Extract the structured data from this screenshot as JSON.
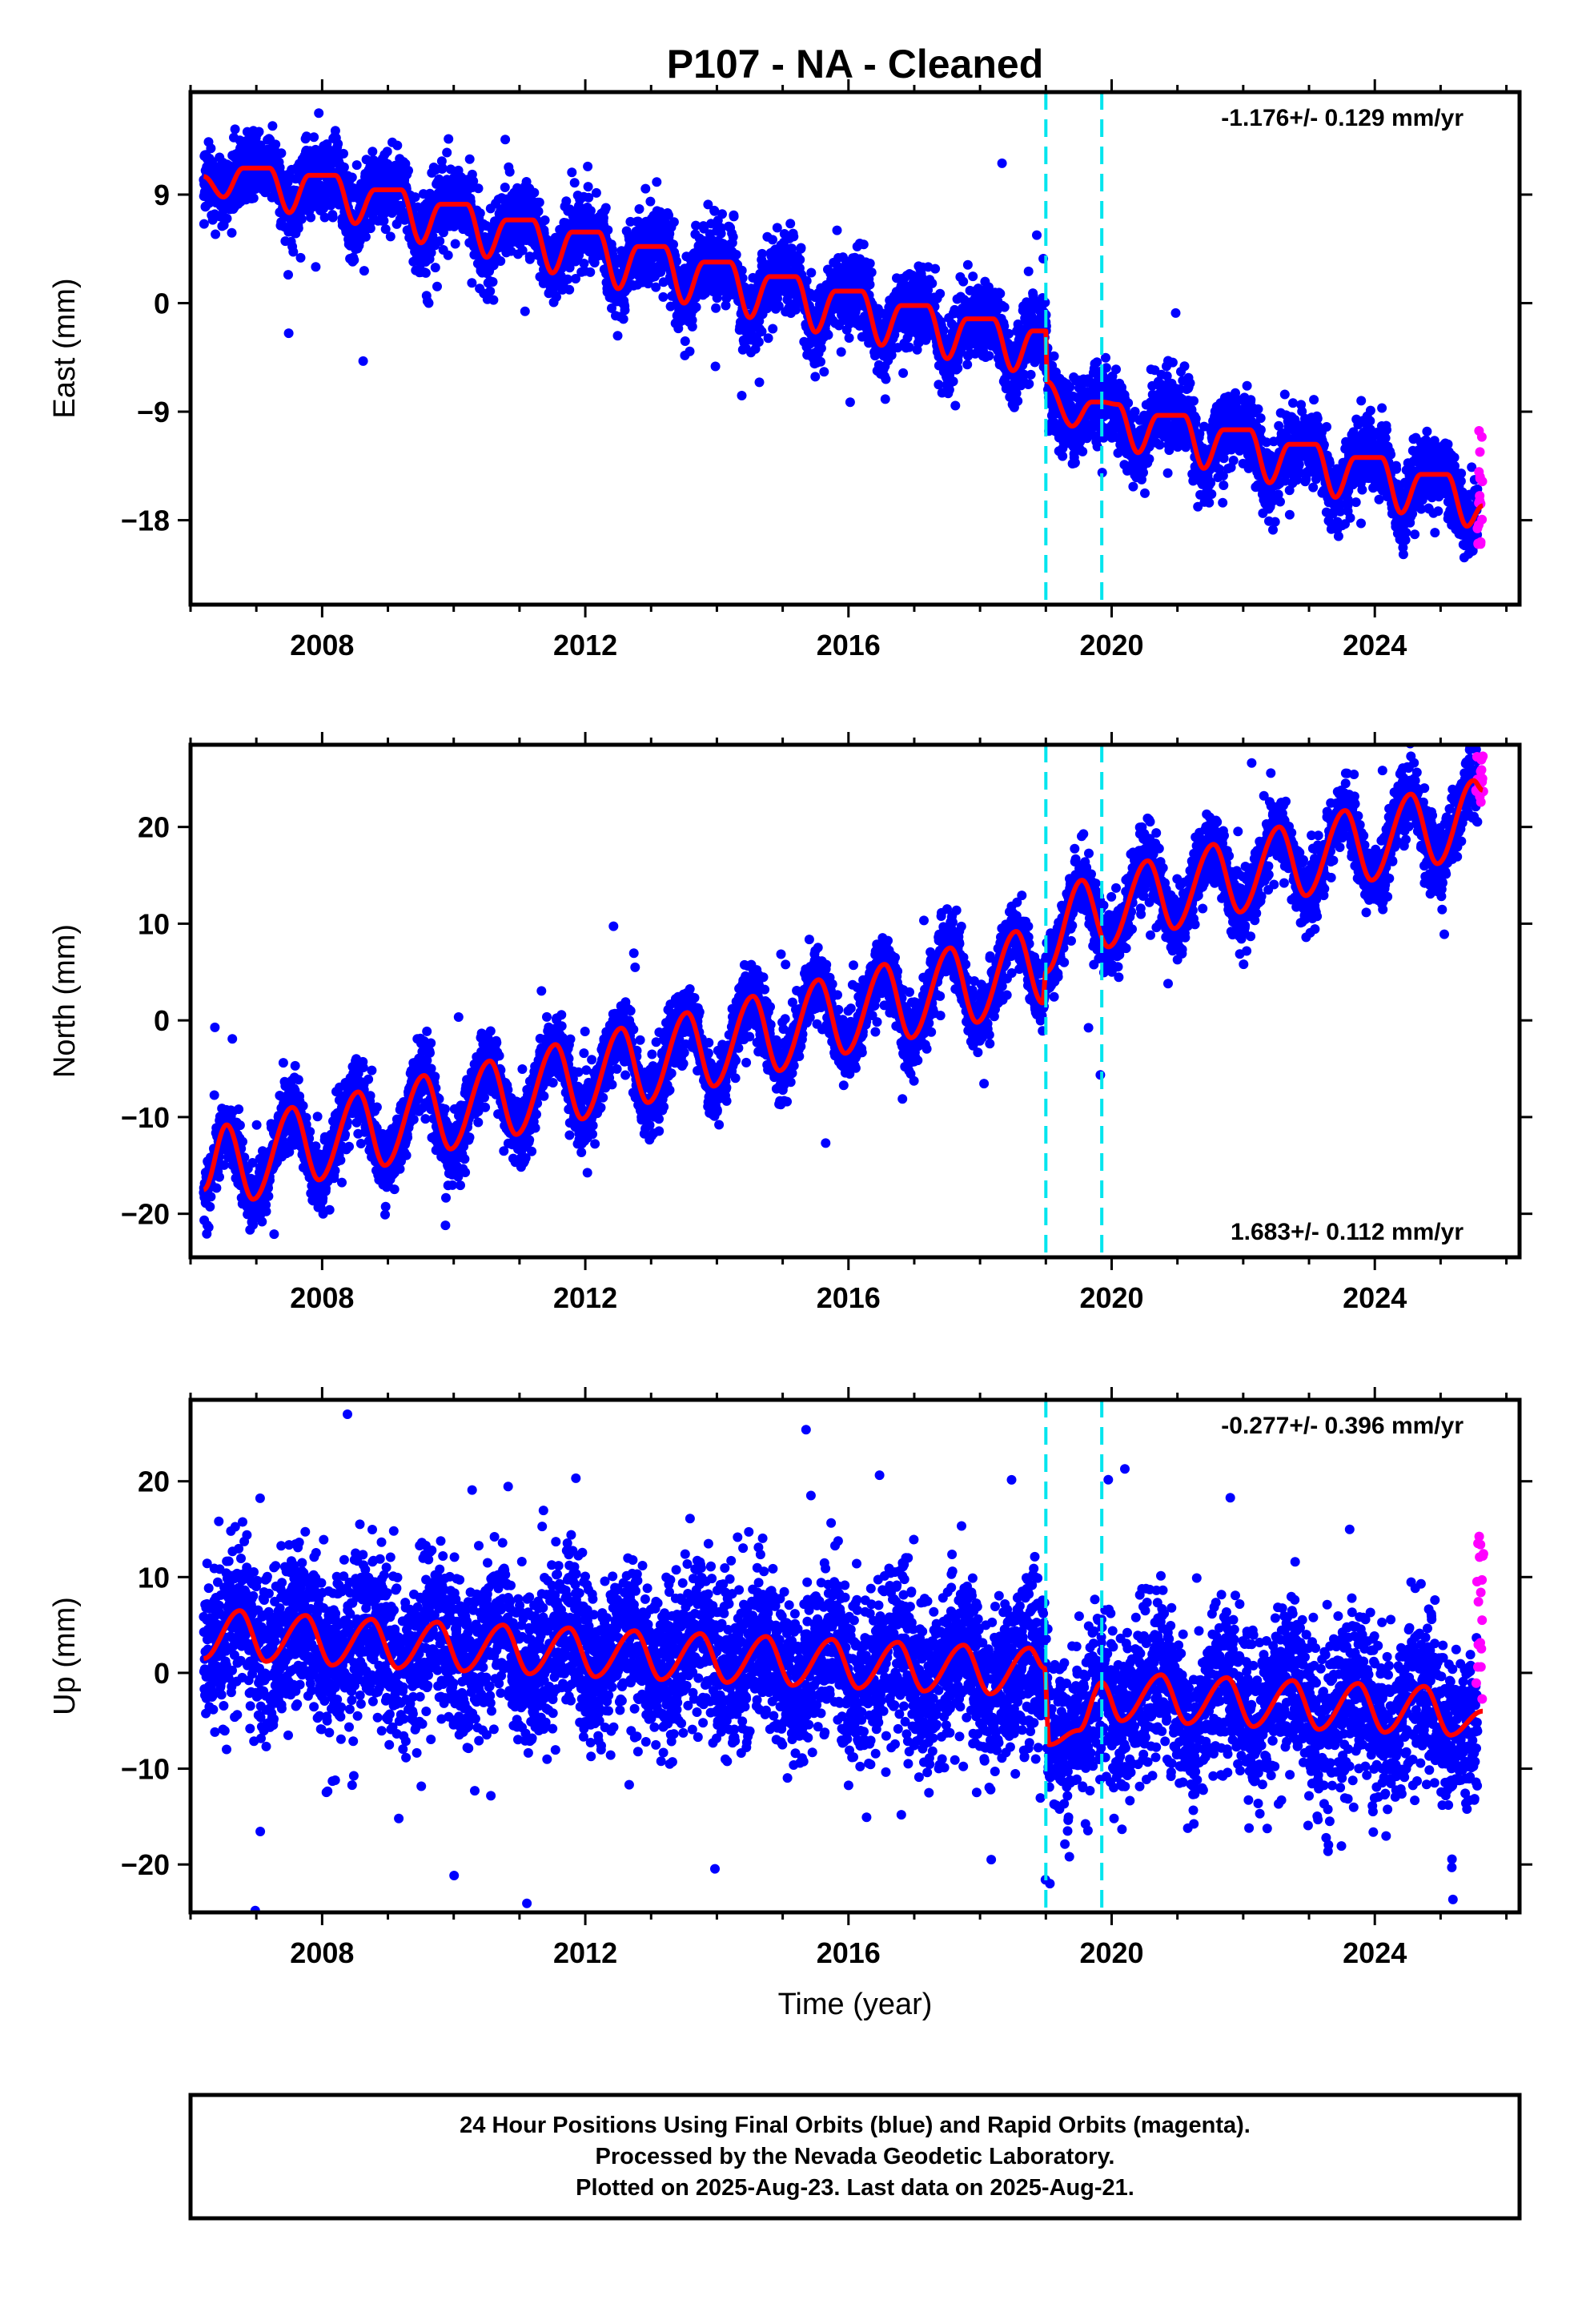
{
  "figure": {
    "title": "P107  - NA - Cleaned",
    "xlabel": "Time (year)",
    "notes": [
      "24 Hour Positions Using Final Orbits (blue) and Rapid Orbits (magenta).",
      "Processed by the Nevada Geodetic Laboratory.",
      "Plotted on 2025-Aug-23. Last data on 2025-Aug-21."
    ]
  },
  "colors": {
    "final_orbits": "#0000ff",
    "rapid_orbits": "#ff00ff",
    "model": "#ff0000",
    "offsets": "#00e5ee",
    "frame": "#000000"
  },
  "chart_data": [
    {
      "type": "scatter",
      "component": "east",
      "ylabel": "East (mm)",
      "rate_label": "-1.176+/- 0.129 mm/yr",
      "xlim": [
        2006.0,
        2026.2
      ],
      "ylim": [
        -25,
        17.5
      ],
      "x_ticks": [
        2008,
        2012,
        2016,
        2020,
        2024
      ],
      "y_ticks": [
        9,
        0,
        -9,
        -18
      ],
      "offset_epochs": [
        2019.0,
        2019.85
      ],
      "data_start": 2006.2,
      "data_end": 2025.64,
      "model_knots": [
        [
          2006.2,
          10.5
        ],
        [
          2006.5,
          8.8
        ],
        [
          2006.8,
          11.2
        ],
        [
          2007.2,
          11.2
        ],
        [
          2007.5,
          7.5
        ],
        [
          2007.8,
          10.6
        ],
        [
          2008.2,
          10.6
        ],
        [
          2008.5,
          6.6
        ],
        [
          2008.8,
          9.4
        ],
        [
          2009.2,
          9.4
        ],
        [
          2009.5,
          5.0
        ],
        [
          2009.8,
          8.2
        ],
        [
          2010.2,
          8.2
        ],
        [
          2010.5,
          3.8
        ],
        [
          2010.8,
          6.9
        ],
        [
          2011.2,
          6.9
        ],
        [
          2011.5,
          2.5
        ],
        [
          2011.8,
          5.9
        ],
        [
          2012.2,
          5.9
        ],
        [
          2012.5,
          1.2
        ],
        [
          2012.8,
          4.7
        ],
        [
          2013.2,
          4.7
        ],
        [
          2013.5,
          0.0
        ],
        [
          2013.8,
          3.4
        ],
        [
          2014.2,
          3.4
        ],
        [
          2014.5,
          -1.2
        ],
        [
          2014.8,
          2.2
        ],
        [
          2015.2,
          2.2
        ],
        [
          2015.5,
          -2.4
        ],
        [
          2015.8,
          1.0
        ],
        [
          2016.2,
          1.0
        ],
        [
          2016.5,
          -3.5
        ],
        [
          2016.8,
          -0.2
        ],
        [
          2017.2,
          -0.2
        ],
        [
          2017.5,
          -4.6
        ],
        [
          2017.8,
          -1.3
        ],
        [
          2018.2,
          -1.3
        ],
        [
          2018.5,
          -5.6
        ],
        [
          2018.8,
          -2.3
        ],
        [
          2019.0,
          -2.3
        ],
        [
          2019.02,
          -6.5
        ],
        [
          2019.4,
          -10.2
        ],
        [
          2019.7,
          -8.2
        ],
        [
          2019.85,
          -8.2
        ],
        [
          2020.1,
          -8.4
        ],
        [
          2020.4,
          -12.4
        ],
        [
          2020.7,
          -9.3
        ],
        [
          2021.1,
          -9.3
        ],
        [
          2021.4,
          -13.7
        ],
        [
          2021.7,
          -10.5
        ],
        [
          2022.1,
          -10.5
        ],
        [
          2022.4,
          -14.9
        ],
        [
          2022.7,
          -11.7
        ],
        [
          2023.1,
          -11.7
        ],
        [
          2023.4,
          -16.1
        ],
        [
          2023.7,
          -12.8
        ],
        [
          2024.1,
          -12.8
        ],
        [
          2024.4,
          -17.4
        ],
        [
          2024.7,
          -14.2
        ],
        [
          2025.1,
          -14.2
        ],
        [
          2025.4,
          -18.5
        ],
        [
          2025.64,
          -16.8
        ]
      ],
      "scatter_sigma": 1.5,
      "rapid_range": [
        -20.0,
        -10.5
      ]
    },
    {
      "type": "scatter",
      "component": "north",
      "ylabel": "North (mm)",
      "rate_label": "1.683+/- 0.112 mm/yr",
      "xlim": [
        2006.0,
        2026.2
      ],
      "ylim": [
        -24.5,
        28.5
      ],
      "x_ticks": [
        2008,
        2012,
        2016,
        2020,
        2024
      ],
      "y_ticks": [
        20,
        10,
        0,
        -10,
        -20
      ],
      "offset_epochs": [
        2019.0,
        2019.85
      ],
      "data_start": 2006.2,
      "data_end": 2025.64,
      "model_knots": [
        [
          2006.2,
          -17.5
        ],
        [
          2006.55,
          -10.8
        ],
        [
          2006.95,
          -18.5
        ],
        [
          2007.55,
          -9.0
        ],
        [
          2007.95,
          -16.5
        ],
        [
          2008.55,
          -7.4
        ],
        [
          2008.95,
          -15.0
        ],
        [
          2009.55,
          -5.7
        ],
        [
          2009.95,
          -13.3
        ],
        [
          2010.55,
          -4.2
        ],
        [
          2010.95,
          -11.8
        ],
        [
          2011.55,
          -2.5
        ],
        [
          2011.95,
          -10.2
        ],
        [
          2012.55,
          -0.8
        ],
        [
          2012.95,
          -8.5
        ],
        [
          2013.55,
          0.8
        ],
        [
          2013.95,
          -6.8
        ],
        [
          2014.55,
          2.5
        ],
        [
          2014.95,
          -5.2
        ],
        [
          2015.55,
          4.2
        ],
        [
          2015.95,
          -3.4
        ],
        [
          2016.55,
          5.8
        ],
        [
          2016.95,
          -1.8
        ],
        [
          2017.55,
          7.5
        ],
        [
          2017.95,
          -0.2
        ],
        [
          2018.55,
          9.2
        ],
        [
          2018.95,
          1.8
        ],
        [
          2019.0,
          5.0
        ],
        [
          2019.55,
          14.5
        ],
        [
          2019.95,
          7.6
        ],
        [
          2020.55,
          16.5
        ],
        [
          2020.95,
          9.5
        ],
        [
          2021.55,
          18.2
        ],
        [
          2021.95,
          11.2
        ],
        [
          2022.55,
          20.0
        ],
        [
          2022.95,
          12.9
        ],
        [
          2023.55,
          21.7
        ],
        [
          2023.95,
          14.5
        ],
        [
          2024.55,
          23.4
        ],
        [
          2024.95,
          16.2
        ],
        [
          2025.5,
          24.8
        ],
        [
          2025.64,
          23.8
        ]
      ],
      "scatter_sigma": 1.7,
      "rapid_range": [
        22.5,
        27.5
      ]
    },
    {
      "type": "scatter",
      "component": "up",
      "ylabel": "Up (mm)",
      "rate_label": "-0.277+/- 0.396 mm/yr",
      "xlim": [
        2006.0,
        2026.2
      ],
      "ylim": [
        -25,
        28.5
      ],
      "x_ticks": [
        2008,
        2012,
        2016,
        2020,
        2024
      ],
      "y_ticks": [
        20,
        10,
        0,
        -10,
        -20
      ],
      "offset_epochs": [
        2019.0,
        2019.85
      ],
      "data_start": 2006.2,
      "data_end": 2025.64,
      "model_knots": [
        [
          2006.2,
          1.5
        ],
        [
          2006.75,
          6.5
        ],
        [
          2007.15,
          1.2
        ],
        [
          2007.75,
          6.0
        ],
        [
          2008.15,
          0.8
        ],
        [
          2008.75,
          5.6
        ],
        [
          2009.15,
          0.5
        ],
        [
          2009.75,
          5.3
        ],
        [
          2010.15,
          0.2
        ],
        [
          2010.75,
          5.0
        ],
        [
          2011.15,
          -0.1
        ],
        [
          2011.75,
          4.7
        ],
        [
          2012.15,
          -0.4
        ],
        [
          2012.75,
          4.4
        ],
        [
          2013.15,
          -0.7
        ],
        [
          2013.75,
          4.1
        ],
        [
          2014.15,
          -1.0
        ],
        [
          2014.75,
          3.8
        ],
        [
          2015.15,
          -1.3
        ],
        [
          2015.75,
          3.5
        ],
        [
          2016.15,
          -1.6
        ],
        [
          2016.75,
          3.2
        ],
        [
          2017.15,
          -1.9
        ],
        [
          2017.75,
          2.9
        ],
        [
          2018.15,
          -2.2
        ],
        [
          2018.75,
          2.6
        ],
        [
          2018.98,
          0.5
        ],
        [
          2019.05,
          -7.5
        ],
        [
          2019.5,
          -6.0
        ],
        [
          2019.85,
          -1.0
        ],
        [
          2020.15,
          -5.0
        ],
        [
          2020.75,
          -0.2
        ],
        [
          2021.15,
          -5.3
        ],
        [
          2021.75,
          -0.5
        ],
        [
          2022.15,
          -5.6
        ],
        [
          2022.75,
          -0.8
        ],
        [
          2023.15,
          -5.9
        ],
        [
          2023.75,
          -1.1
        ],
        [
          2024.15,
          -6.2
        ],
        [
          2024.75,
          -1.4
        ],
        [
          2025.15,
          -6.5
        ],
        [
          2025.64,
          -4.0
        ]
      ],
      "scatter_sigma": 4.3,
      "rapid_range": [
        -3.0,
        15.0
      ]
    }
  ]
}
